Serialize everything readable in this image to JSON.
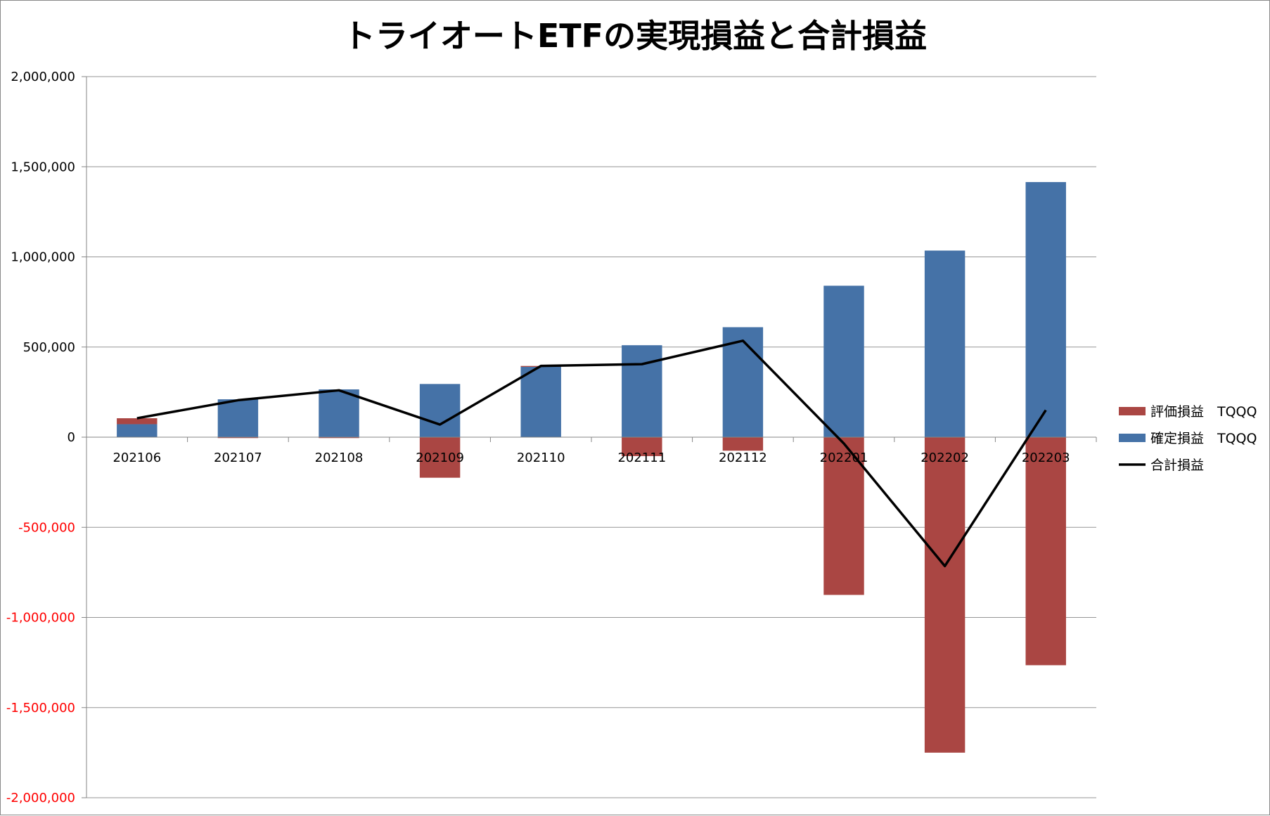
{
  "chart_data": {
    "type": "bar",
    "title": "トライオートETFの実現損益と合計損益",
    "categories": [
      "202106",
      "202107",
      "202108",
      "202109",
      "202110",
      "202111",
      "202112",
      "202201",
      "202202",
      "202203"
    ],
    "series": [
      {
        "name": "確定損益　TQQQ",
        "kind": "stacked-bar",
        "color": "#4572A7",
        "values": [
          72000,
          210000,
          265000,
          295000,
          390000,
          510000,
          610000,
          840000,
          1035000,
          1415000
        ]
      },
      {
        "name": "評価損益　TQQQ",
        "kind": "stacked-bar",
        "color": "#AA4643",
        "values": [
          33000,
          -5000,
          -5000,
          -225000,
          5000,
          -105000,
          -75000,
          -875000,
          -1750000,
          -1265000
        ]
      },
      {
        "name": "合計損益",
        "kind": "line",
        "color": "#000000",
        "values": [
          105000,
          205000,
          260000,
          70000,
          395000,
          405000,
          535000,
          -35000,
          -715000,
          150000
        ]
      }
    ],
    "ylim": [
      -2000000,
      2000000
    ],
    "ytick_step": 500000,
    "yticks": [
      "2,000,000",
      "1,500,000",
      "1,000,000",
      "500,000",
      "0",
      "-500,000",
      "-1,000,000",
      "-1,500,000",
      "-2,000,000"
    ],
    "negative_tick_color": "#FF0000",
    "grid": true,
    "legend_position": "right",
    "legend_order": [
      "評価損益　TQQQ",
      "確定損益　TQQQ",
      "合計損益"
    ]
  }
}
